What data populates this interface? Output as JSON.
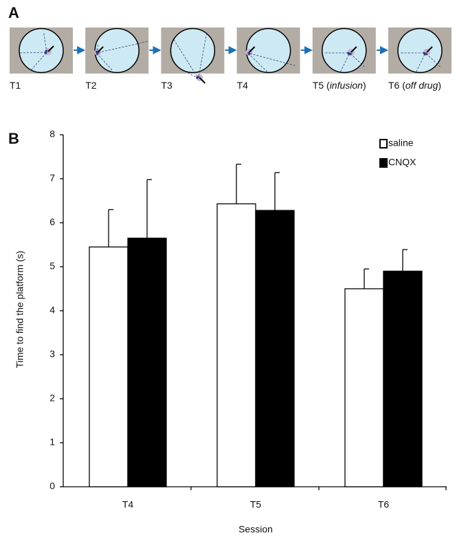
{
  "panel_a": {
    "letter": "A",
    "trials": [
      {
        "label": "T1"
      },
      {
        "label": "T2"
      },
      {
        "label": "T3"
      },
      {
        "label": "T4"
      },
      {
        "label": "T5 (",
        "italic": "infusion",
        "after": ")"
      },
      {
        "label": "T6 (",
        "italic": "off drug",
        "after": ")"
      }
    ]
  },
  "chart_data": {
    "type": "bar",
    "panel": "B",
    "ylabel": "Time to find the platform (s)",
    "xlabel": "Session",
    "categories": [
      "T4",
      "T5",
      "T6"
    ],
    "series": [
      {
        "name": "saline",
        "color": "#ffffff",
        "values": [
          5.45,
          6.43,
          4.5
        ],
        "errors": [
          0.85,
          0.9,
          0.45
        ]
      },
      {
        "name": "CNQX",
        "color": "#000000",
        "values": [
          5.65,
          6.28,
          4.9
        ],
        "errors": [
          1.33,
          0.86,
          0.49
        ]
      }
    ],
    "ylim": [
      0,
      8
    ],
    "yticks": [
      0,
      1,
      2,
      3,
      4,
      5,
      6,
      7,
      8
    ],
    "legend": "top-right"
  }
}
